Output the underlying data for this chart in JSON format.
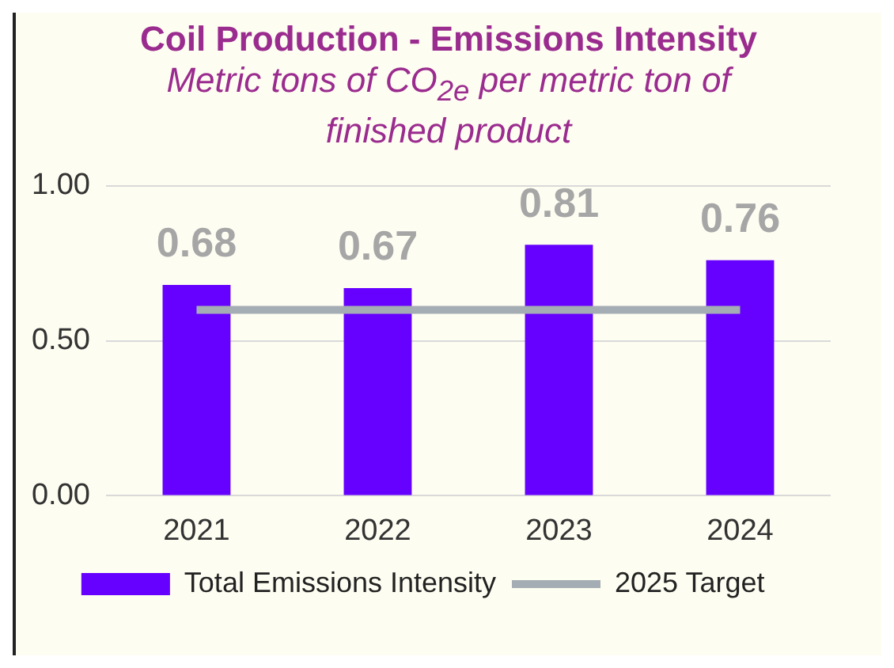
{
  "chart_data": {
    "type": "bar",
    "title": "Coil Production - Emissions Intensity",
    "subtitle": "Metric tons of CO$_{2e}$ per metric ton of finished product",
    "categories": [
      "2021",
      "2022",
      "2023",
      "2024"
    ],
    "series": [
      {
        "name": "Total Emissions Intensity",
        "color": "#6600ff",
        "values": [
          0.68,
          0.67,
          0.81,
          0.76
        ],
        "value_labels": [
          "0.68",
          "0.67",
          "0.81",
          "0.76"
        ]
      },
      {
        "name": "2025 Target",
        "type": "line",
        "color": "#a5adb4",
        "values": [
          0.6,
          0.6,
          0.6,
          0.6
        ]
      }
    ],
    "ylim": [
      0,
      1
    ],
    "yticks": [
      {
        "value": 0,
        "label": "0.00"
      },
      {
        "value": 0.5,
        "label": "0.50"
      },
      {
        "value": 1,
        "label": "1.00"
      }
    ],
    "grid": "y",
    "legend": "bottom",
    "marker": "none",
    "line_style": "solid"
  }
}
